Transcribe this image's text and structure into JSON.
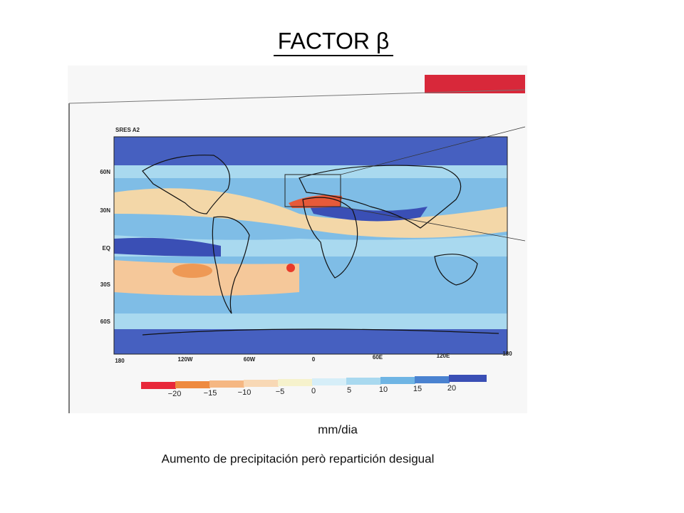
{
  "title": "FACTOR β",
  "map": {
    "label": "SRES A2",
    "lat_labels": [
      "60N",
      "30N",
      "EQ",
      "30S",
      "60S"
    ],
    "lon_labels": [
      "180",
      "120W",
      "60W",
      "0",
      "60E",
      "120E",
      "180"
    ]
  },
  "colorbar": {
    "labels": [
      "−20",
      "−15",
      "−10",
      "−5",
      "0",
      "5",
      "10",
      "15",
      "20"
    ]
  },
  "unit": "mm/dia",
  "caption": "Aumento de precipitación però repartición desigual"
}
